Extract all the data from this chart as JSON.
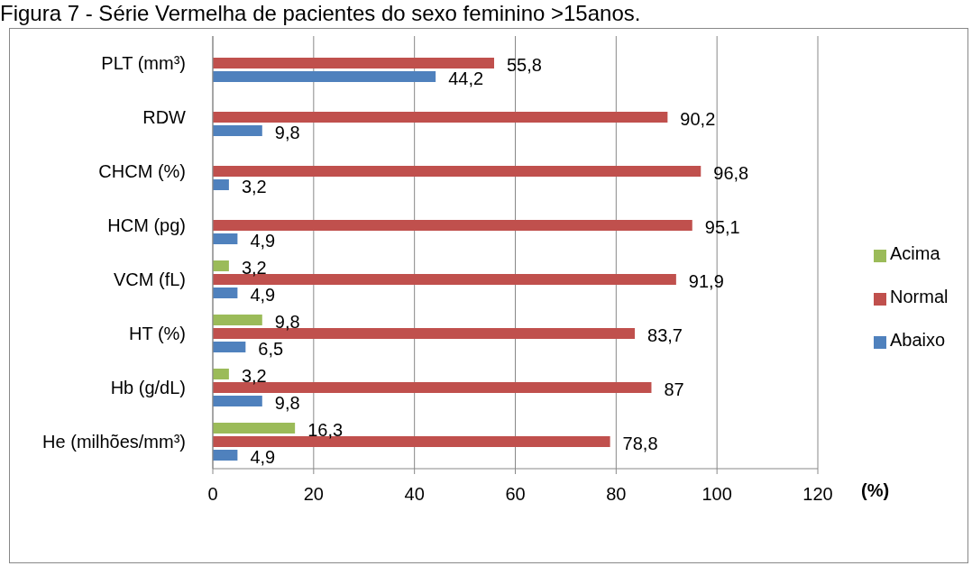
{
  "chart_data": {
    "type": "bar",
    "orientation": "horizontal",
    "title": "Figura 7 - Série Vermelha de pacientes do sexo feminino >15anos.",
    "xlabel": "(%)",
    "categories": [
      "PLT (mm³)",
      "RDW",
      "CHCM (%)",
      "HCM (pg)",
      "VCM (fL)",
      "HT (%)",
      "Hb (g/dL)",
      "He (milhões/mm³)"
    ],
    "series": [
      {
        "name": "Acima",
        "color": "#9bbb59",
        "values": [
          null,
          null,
          null,
          null,
          3.2,
          9.8,
          3.2,
          16.3
        ],
        "value_labels": [
          null,
          null,
          null,
          null,
          "3,2",
          "9,8",
          "3,2",
          "16,3"
        ]
      },
      {
        "name": "Normal",
        "color": "#c0504d",
        "values": [
          55.8,
          90.2,
          96.8,
          95.1,
          91.9,
          83.7,
          87,
          78.8
        ],
        "value_labels": [
          "55,8",
          "90,2",
          "96,8",
          "95,1",
          "91,9",
          "83,7",
          "87",
          "78,8"
        ]
      },
      {
        "name": "Abaixo",
        "color": "#4f81bd",
        "values": [
          44.2,
          9.8,
          3.2,
          4.9,
          4.9,
          6.5,
          9.8,
          4.9
        ],
        "value_labels": [
          "44,2",
          "9,8",
          "3,2",
          "4,9",
          "4,9",
          "6,5",
          "9,8",
          "4,9"
        ]
      }
    ],
    "xlim": [
      0,
      120
    ],
    "xticks": [
      0,
      20,
      40,
      60,
      80,
      100,
      120
    ],
    "grid": "x",
    "legend": "right"
  }
}
